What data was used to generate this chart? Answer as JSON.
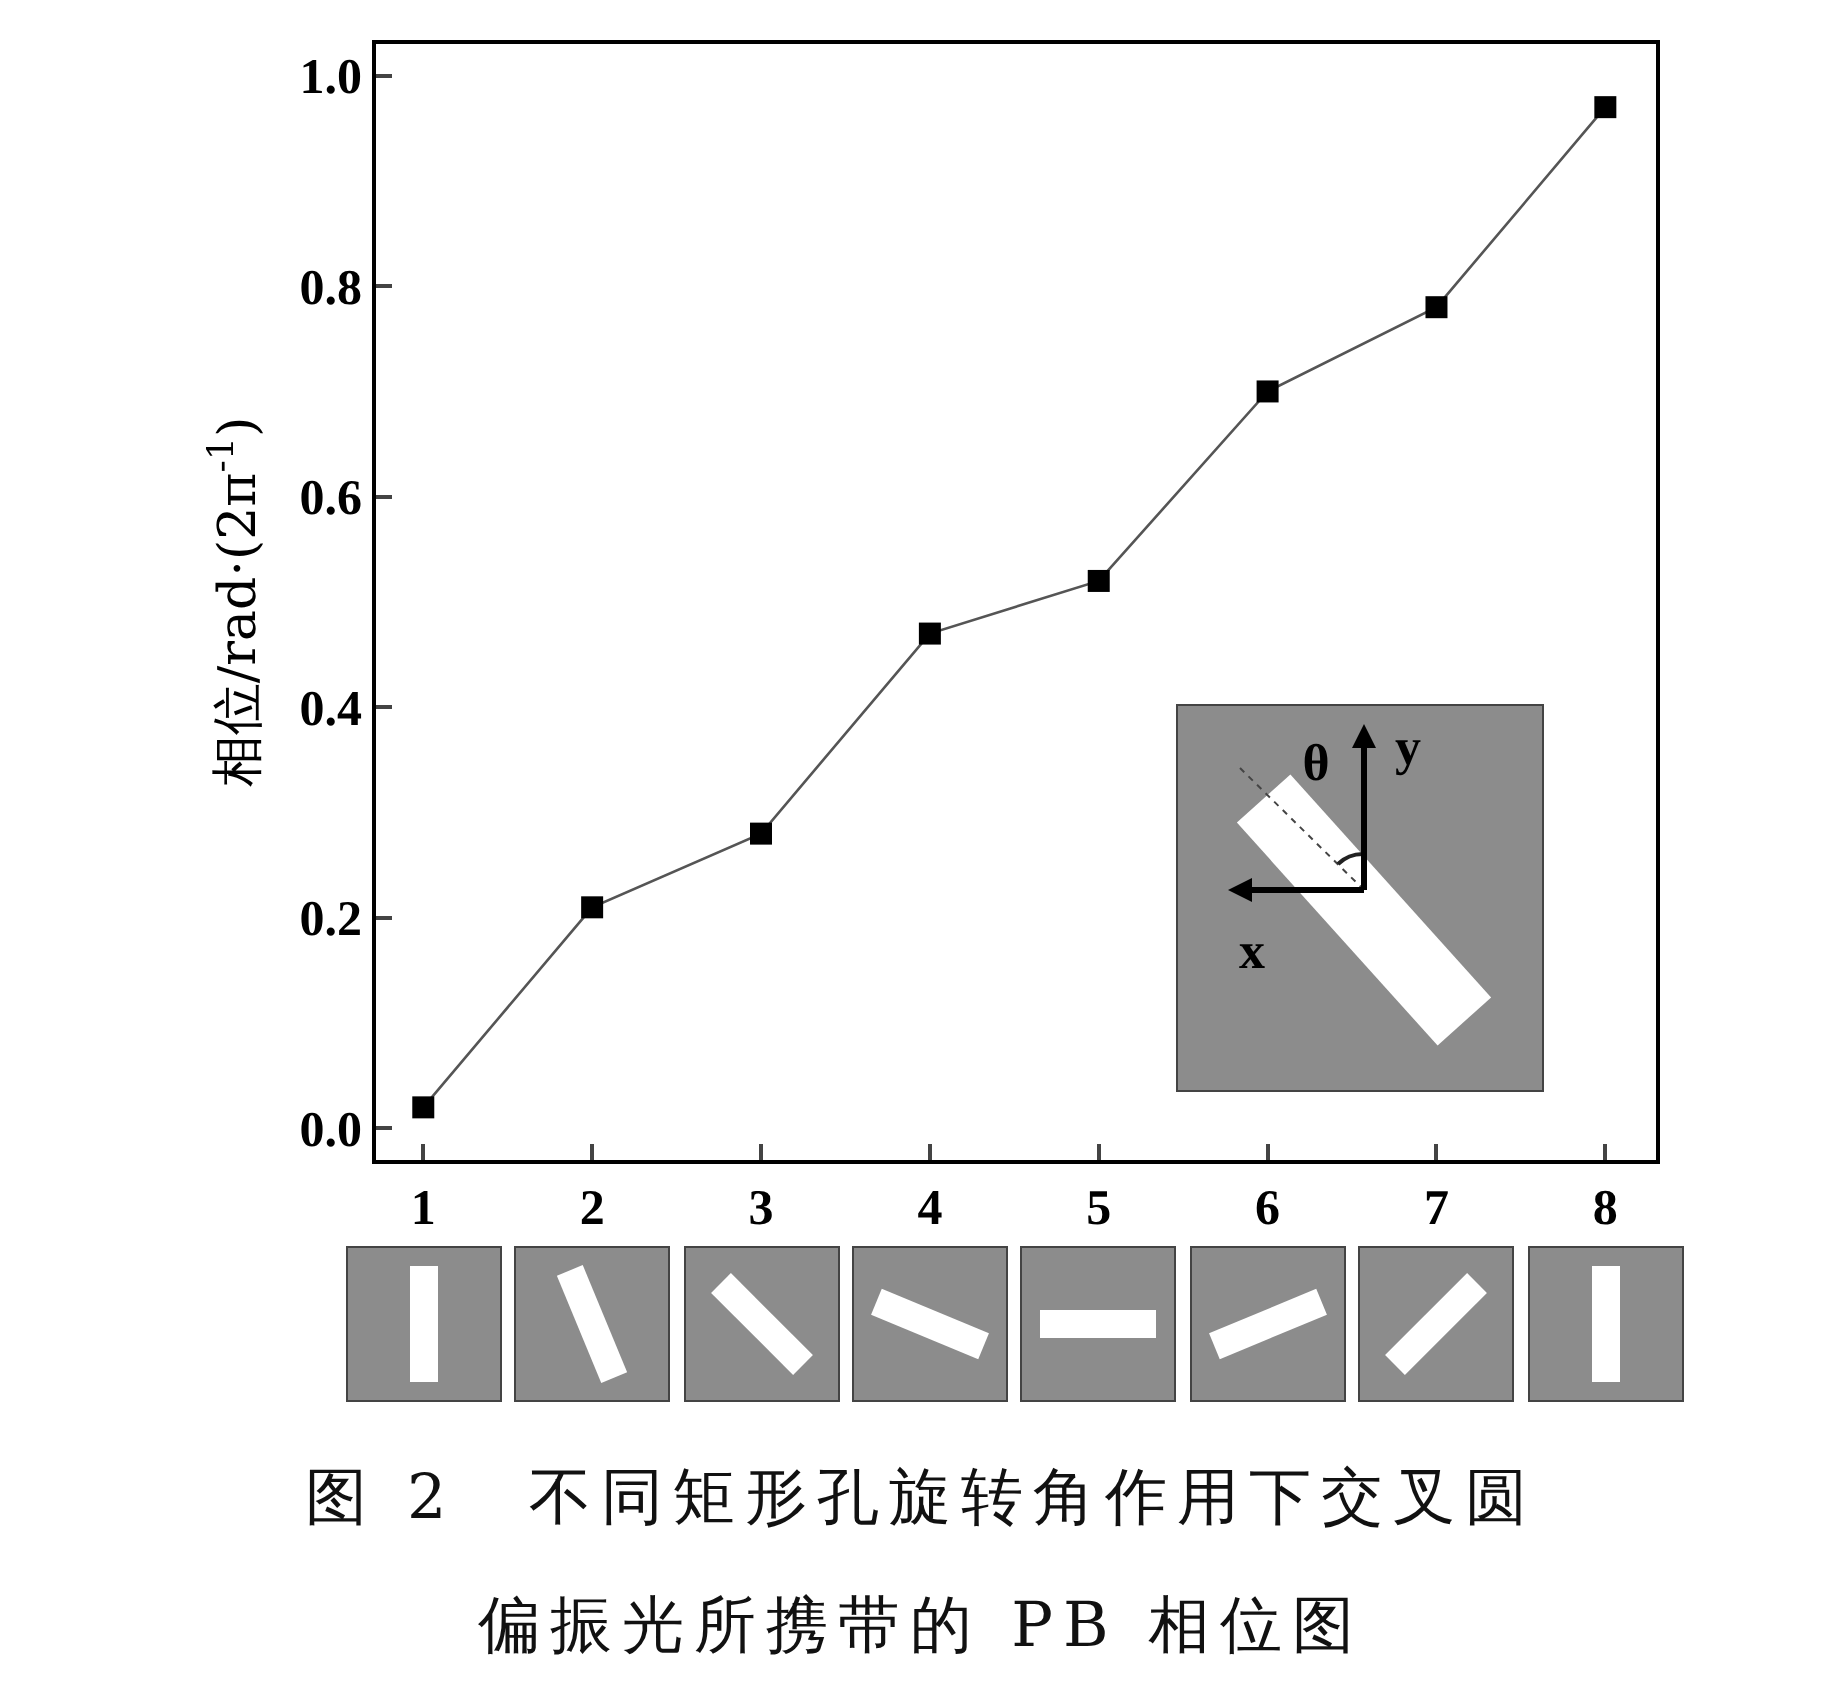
{
  "chart_data": {
    "type": "line",
    "ylabel": "相位/rad·(2π$^{-1}$)",
    "categories": [
      "1",
      "2",
      "3",
      "4",
      "5",
      "6",
      "7",
      "8"
    ],
    "series": [
      {
        "color": "#000000",
        "values": [
          0.02,
          0.21,
          0.28,
          0.47,
          0.52,
          0.7,
          0.78,
          0.97
        ]
      }
    ],
    "ylim": [
      -0.03,
      1.03
    ],
    "yticks": [
      {
        "value": 0,
        "label": "0.0"
      },
      {
        "value": 0.2,
        "label": "0.2"
      },
      {
        "value": 0.4,
        "label": "0.4"
      },
      {
        "value": 0.6,
        "label": "0.6"
      },
      {
        "value": 0.8,
        "label": "0.8"
      },
      {
        "value": 1,
        "label": "1.0"
      }
    ],
    "grid": false,
    "marker": "square",
    "line_style": "solid",
    "annotations": [
      "θ",
      "x",
      "y",
      "图 2　不同矩形孔旋转角作用下交叉圆",
      "偏振光所携带的 PB 相位图"
    ]
  }
}
